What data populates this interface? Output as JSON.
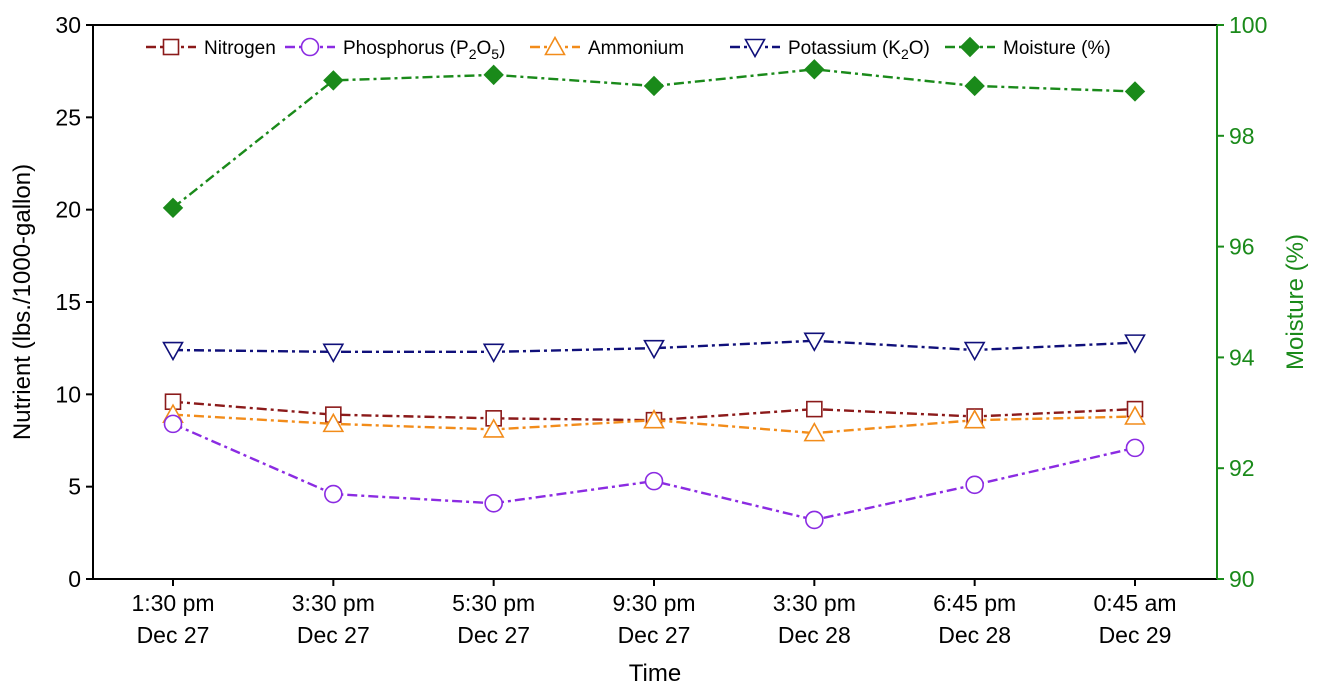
{
  "chart_data": {
    "type": "line",
    "title": "",
    "xlabel": "Time",
    "ylabel": "Nutrient (lbs./1000-gallon)",
    "ylabel_right": "Moisture (%)",
    "ylim": [
      0,
      30
    ],
    "ylim_right": [
      90,
      100
    ],
    "yticks": [
      "0",
      "5",
      "10",
      "15",
      "20",
      "25",
      "30"
    ],
    "yticks_right": [
      "90",
      "92",
      "94",
      "96",
      "98",
      "100"
    ],
    "categories": [
      [
        "1:30 pm",
        "Dec 27"
      ],
      [
        "3:30 pm",
        "Dec 27"
      ],
      [
        "5:30 pm",
        "Dec 27"
      ],
      [
        "9:30 pm",
        "Dec 27"
      ],
      [
        "3:30 pm",
        "Dec 28"
      ],
      [
        "6:45 pm",
        "Dec 28"
      ],
      [
        "0:45 am",
        "Dec 29"
      ]
    ],
    "legend_placement": "top",
    "series": [
      {
        "name": "Nitrogen",
        "axis": "left",
        "marker": "square-open",
        "line": "dash-dot",
        "color": "#8b1a1a",
        "values": [
          9.6,
          8.9,
          8.7,
          8.6,
          9.2,
          8.8,
          9.2
        ]
      },
      {
        "name": "Phosphorus (P2O5)",
        "name_parts": {
          "pre": "Phosphorus (P",
          "sub1": "2",
          "mid": "O",
          "sub2": "5",
          "post": ")"
        },
        "axis": "left",
        "marker": "circle-open",
        "line": "dash-dot",
        "color": "#8b2be2",
        "values": [
          8.4,
          4.6,
          4.1,
          5.3,
          3.2,
          5.1,
          7.1
        ]
      },
      {
        "name": "Ammonium",
        "axis": "left",
        "marker": "triangle-up-open",
        "line": "dash-dot",
        "color": "#f28c1a",
        "values": [
          8.9,
          8.4,
          8.1,
          8.6,
          7.9,
          8.6,
          8.8
        ]
      },
      {
        "name": "Potassium (K2O)",
        "name_parts": {
          "pre": "Potassium (K",
          "sub1": "2",
          "mid": "O)"
        },
        "axis": "left",
        "marker": "triangle-down-open",
        "line": "dash-dot",
        "color": "#10107a",
        "values": [
          12.4,
          12.3,
          12.3,
          12.5,
          12.9,
          12.4,
          12.8
        ]
      },
      {
        "name": "Moisture (%)",
        "axis": "right",
        "marker": "diamond-filled",
        "line": "dash-dot",
        "color": "#1a8a1a",
        "values": [
          96.7,
          99.0,
          99.1,
          98.9,
          99.2,
          98.9,
          98.8
        ]
      }
    ]
  }
}
